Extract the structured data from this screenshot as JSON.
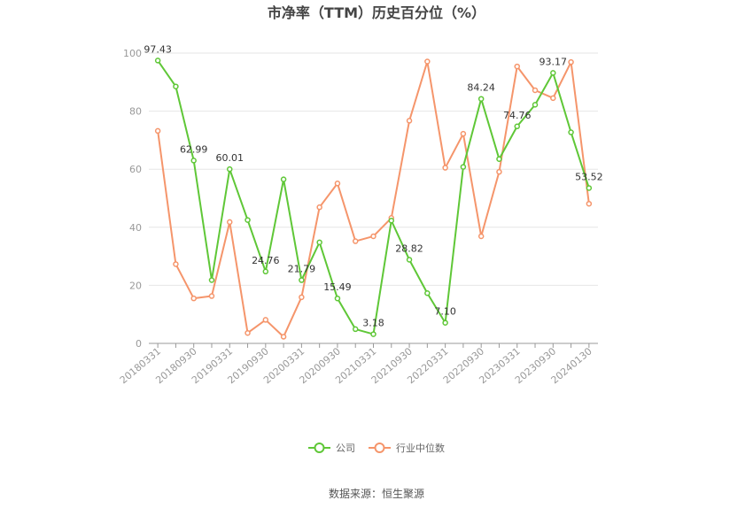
{
  "chart_data": {
    "type": "line",
    "title": "市净率（TTM）历史百分位（%）",
    "x_labels": [
      "20180331",
      "20180930",
      "20190331",
      "20190930",
      "20200331",
      "20200930",
      "20210331",
      "20210930",
      "20220331",
      "20220930",
      "20230331",
      "20230930",
      "20240130"
    ],
    "x": [
      "20180331",
      "20180630",
      "20180930",
      "20181231",
      "20190331",
      "20190630",
      "20190930",
      "20191231",
      "20200331",
      "20200630",
      "20200930",
      "20201231",
      "20210331",
      "20210630",
      "20210930",
      "20211231",
      "20220331",
      "20220630",
      "20220930",
      "20221231",
      "20230331",
      "20230630",
      "20230930",
      "20231231",
      "20240130"
    ],
    "ylim": [
      0,
      100
    ],
    "yticks": [
      0,
      20,
      40,
      60,
      80,
      100
    ],
    "grid": true,
    "legend_position": "bottom",
    "series": [
      {
        "name": "公司",
        "color": "#5fc737",
        "values": [
          97.43,
          88.5,
          62.99,
          21.8,
          60.01,
          42.5,
          24.76,
          56.5,
          21.79,
          34.8,
          15.49,
          4.9,
          3.18,
          42.3,
          28.82,
          17.3,
          7.1,
          60.8,
          84.24,
          63.5,
          74.76,
          82.2,
          93.17,
          72.7,
          53.52
        ]
      },
      {
        "name": "行业中位数",
        "color": "#f5956b",
        "values": [
          73.2,
          27.3,
          15.5,
          16.3,
          41.8,
          3.6,
          8.1,
          2.3,
          15.9,
          46.9,
          55.1,
          35.2,
          36.9,
          43.2,
          76.7,
          97.1,
          60.5,
          72.2,
          36.9,
          59.1,
          95.4,
          87.2,
          84.5,
          96.9,
          48.1
        ]
      }
    ],
    "data_labels": [
      {
        "index": 0,
        "text": "97.43"
      },
      {
        "index": 2,
        "text": "62.99"
      },
      {
        "index": 4,
        "text": "60.01"
      },
      {
        "index": 6,
        "text": "24.76"
      },
      {
        "index": 8,
        "text": "21.79"
      },
      {
        "index": 10,
        "text": "15.49"
      },
      {
        "index": 12,
        "text": "3.18"
      },
      {
        "index": 14,
        "text": "28.82"
      },
      {
        "index": 16,
        "text": "7.10"
      },
      {
        "index": 18,
        "text": "84.24"
      },
      {
        "index": 20,
        "text": "74.76"
      },
      {
        "index": 22,
        "text": "93.17"
      },
      {
        "index": 24,
        "text": "53.52"
      }
    ]
  },
  "source": "数据来源：恒生聚源"
}
